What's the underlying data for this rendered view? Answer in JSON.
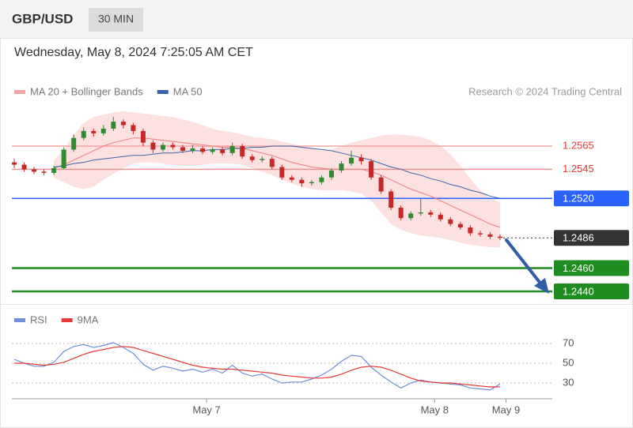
{
  "header": {
    "symbol": "GBP/USD",
    "timeframe": "30 MIN",
    "timestamp": "Wednesday, May 8, 2024 7:25:05 AM CET",
    "source": "Research © 2024 Trading Central"
  },
  "chart_data": [
    {
      "type": "candlestick",
      "candles": [
        [
          1.2551,
          1.2554,
          1.2546,
          1.2549
        ],
        [
          1.2549,
          1.2551,
          1.2543,
          1.2545
        ],
        [
          1.2545,
          1.2547,
          1.2541,
          1.2543
        ],
        [
          1.2543,
          1.2545,
          1.254,
          1.2542
        ],
        [
          1.2542,
          1.2548,
          1.254,
          1.2546
        ],
        [
          1.2546,
          1.2564,
          1.2545,
          1.2562
        ],
        [
          1.2562,
          1.2575,
          1.256,
          1.2572
        ],
        [
          1.2572,
          1.2581,
          1.257,
          1.2578
        ],
        [
          1.2578,
          1.258,
          1.2573,
          1.2576
        ],
        [
          1.2576,
          1.2583,
          1.2574,
          1.258
        ],
        [
          1.258,
          1.259,
          1.2578,
          1.2586
        ],
        [
          1.2586,
          1.2588,
          1.258,
          1.2583
        ],
        [
          1.2583,
          1.2585,
          1.2575,
          1.2578
        ],
        [
          1.2578,
          1.258,
          1.2565,
          1.2568
        ],
        [
          1.2568,
          1.257,
          1.2559,
          1.2562
        ],
        [
          1.2562,
          1.2568,
          1.256,
          1.2566
        ],
        [
          1.2566,
          1.2568,
          1.2562,
          1.2564
        ],
        [
          1.2564,
          1.2566,
          1.2559,
          1.2561
        ],
        [
          1.2561,
          1.2566,
          1.2559,
          1.2563
        ],
        [
          1.2563,
          1.2565,
          1.2558,
          1.256
        ],
        [
          1.256,
          1.2564,
          1.2558,
          1.2562
        ],
        [
          1.2562,
          1.2564,
          1.2557,
          1.2559
        ],
        [
          1.2559,
          1.2568,
          1.2557,
          1.2565
        ],
        [
          1.2565,
          1.2567,
          1.2554,
          1.2556
        ],
        [
          1.2556,
          1.2558,
          1.2551,
          1.2553
        ],
        [
          1.2553,
          1.2556,
          1.2551,
          1.2554
        ],
        [
          1.2554,
          1.2556,
          1.2545,
          1.2547
        ],
        [
          1.2547,
          1.2549,
          1.2536,
          1.2538
        ],
        [
          1.2538,
          1.254,
          1.2534,
          1.2536
        ],
        [
          1.2536,
          1.2538,
          1.253,
          1.2533
        ],
        [
          1.2533,
          1.2536,
          1.2531,
          1.2534
        ],
        [
          1.2534,
          1.254,
          1.2532,
          1.2538
        ],
        [
          1.2538,
          1.2546,
          1.2536,
          1.2544
        ],
        [
          1.2544,
          1.2552,
          1.2542,
          1.255
        ],
        [
          1.255,
          1.2561,
          1.2548,
          1.2555
        ],
        [
          1.2555,
          1.2558,
          1.2549,
          1.2552
        ],
        [
          1.2552,
          1.2554,
          1.2536,
          1.2538
        ],
        [
          1.2538,
          1.254,
          1.2524,
          1.2526
        ],
        [
          1.2526,
          1.2528,
          1.251,
          1.2512
        ],
        [
          1.2512,
          1.2514,
          1.2501,
          1.2503
        ],
        [
          1.2503,
          1.2509,
          1.2501,
          1.2507
        ],
        [
          1.2507,
          1.252,
          1.2505,
          1.2508
        ],
        [
          1.2508,
          1.251,
          1.2504,
          1.2506
        ],
        [
          1.2506,
          1.2508,
          1.25,
          1.2502
        ],
        [
          1.2502,
          1.2504,
          1.2496,
          1.2498
        ],
        [
          1.2498,
          1.25,
          1.2493,
          1.2495
        ],
        [
          1.2495,
          1.2497,
          1.2488,
          1.249
        ],
        [
          1.249,
          1.2492,
          1.2487,
          1.2489
        ],
        [
          1.2489,
          1.2491,
          1.2485,
          1.2487
        ],
        [
          1.2487,
          1.2489,
          1.2484,
          1.2486
        ]
      ],
      "up_color": "#2e8b2e",
      "down_color": "#c62828",
      "series": [
        {
          "name": "MA 20 + Bollinger Bands",
          "color": "#f4a3a3",
          "band_color": "#fde0e0",
          "values": [
            null,
            null,
            null,
            null,
            1.2546,
            1.2549,
            1.2553,
            1.2557,
            1.2561,
            1.2565,
            1.2568,
            1.257,
            1.2572,
            1.2572,
            1.2571,
            1.257,
            1.2569,
            1.2568,
            1.2567,
            1.2566,
            1.2565,
            1.2564,
            1.2564,
            1.2563,
            1.2561,
            1.2559,
            1.2557,
            1.2554,
            1.2551,
            1.2549,
            1.2547,
            1.2546,
            1.2545,
            1.2545,
            1.2545,
            1.2545,
            1.2543,
            1.254,
            1.2536,
            1.2532,
            1.2528,
            1.2525,
            1.2522,
            1.2518,
            1.2514,
            1.251,
            1.2506,
            1.2502,
            1.2498,
            1.2495
          ],
          "upper": [
            null,
            null,
            null,
            null,
            1.2553,
            1.2562,
            1.2575,
            1.2585,
            1.259,
            1.2592,
            1.2594,
            1.2595,
            1.2594,
            1.2593,
            1.2592,
            1.2591,
            1.259,
            1.2588,
            1.2586,
            1.2583,
            1.258,
            1.2578,
            1.2577,
            1.2575,
            1.2573,
            1.2572,
            1.2571,
            1.2569,
            1.2567,
            1.2565,
            1.2563,
            1.2561,
            1.2562,
            1.2565,
            1.2568,
            1.257,
            1.2572,
            1.2574,
            1.2575,
            1.2575,
            1.2574,
            1.2573,
            1.257,
            1.2565,
            1.2558,
            1.2548,
            1.2537,
            1.2527,
            1.252,
            1.2516
          ],
          "lower": [
            null,
            null,
            null,
            null,
            1.2538,
            1.2534,
            1.253,
            1.2528,
            1.253,
            1.2536,
            1.2541,
            1.2546,
            1.255,
            1.2551,
            1.2551,
            1.255,
            1.2549,
            1.2548,
            1.2548,
            1.2549,
            1.255,
            1.255,
            1.255,
            1.2549,
            1.2546,
            1.2543,
            1.254,
            1.2536,
            1.2533,
            1.253,
            1.2528,
            1.2527,
            1.2527,
            1.2527,
            1.2526,
            1.2524,
            1.2518,
            1.2508,
            1.2498,
            1.2493,
            1.249,
            1.2488,
            1.2487,
            1.2486,
            1.2484,
            1.2482,
            1.248,
            1.2479,
            1.2478,
            1.2478
          ]
        },
        {
          "name": "MA 50",
          "color": "#3a63a8",
          "values": [
            null,
            null,
            null,
            null,
            1.2547,
            1.2548,
            1.255,
            1.2551,
            1.2553,
            1.2554,
            1.2555,
            1.2556,
            1.2557,
            1.2557,
            1.2558,
            1.2559,
            1.2559,
            1.256,
            1.2561,
            1.2561,
            1.2562,
            1.2562,
            1.2563,
            1.2563,
            1.2564,
            1.2564,
            1.2565,
            1.2565,
            1.2565,
            1.2564,
            1.2563,
            1.2562,
            1.2561,
            1.2559,
            1.2557,
            1.2555,
            1.2553,
            1.255,
            1.2547,
            1.2545,
            1.2542,
            1.254,
            1.2537,
            1.2535,
            1.2532,
            1.253,
            1.2527,
            1.2525,
            1.2522,
            1.252
          ]
        }
      ],
      "levels": [
        {
          "value": 1.2565,
          "label": "1.2565",
          "color": "#f4a3a3",
          "label_color": "#e53935",
          "style": "text"
        },
        {
          "value": 1.2545,
          "label": "1.2545",
          "color": "#f08c8c",
          "label_color": "#e53935",
          "style": "text"
        },
        {
          "value": 1.252,
          "label": "1.2520",
          "color": "#2962ff",
          "label_color": "#2962ff",
          "style": "badge"
        },
        {
          "value": 1.2486,
          "label": "1.2486",
          "color": "#333333",
          "label_color": "#333333",
          "style": "current"
        },
        {
          "value": 1.246,
          "label": "1.2460",
          "color": "#1e8c1e",
          "label_color": "#1e8c1e",
          "style": "badge"
        },
        {
          "value": 1.244,
          "label": "1.2440",
          "color": "#1e8c1e",
          "label_color": "#1e8c1e",
          "style": "badge"
        }
      ],
      "xlim": [
        -0.24,
        54.27
      ],
      "ylim": [
        1.243,
        1.26
      ]
    },
    {
      "type": "line",
      "series": [
        {
          "name": "RSI",
          "color": "#6f8fdc",
          "values": [
            54,
            50,
            47,
            47,
            51,
            62,
            67,
            69,
            66,
            68,
            71,
            66,
            60,
            49,
            43,
            47,
            45,
            42,
            44,
            41,
            44,
            40,
            48,
            40,
            37,
            39,
            34,
            30,
            31,
            31,
            34,
            38,
            44,
            52,
            58,
            57,
            46,
            38,
            31,
            25,
            30,
            33,
            31,
            30,
            29,
            28,
            25,
            24,
            23,
            29
          ]
        },
        {
          "name": "9MA",
          "color": "#e53935",
          "values": [
            50,
            50,
            49,
            48,
            49,
            51,
            55,
            59,
            62,
            64,
            66,
            67,
            66,
            63,
            60,
            57,
            54,
            51,
            48,
            46,
            45,
            44,
            44,
            43,
            42,
            41,
            40,
            38,
            37,
            36,
            35,
            35,
            36,
            39,
            43,
            46,
            47,
            46,
            43,
            39,
            35,
            32,
            31,
            30,
            30,
            29,
            28,
            27,
            26,
            26
          ]
        }
      ],
      "xlim": [
        -0.24,
        54.27
      ],
      "xticks": [
        {
          "value": 19.4,
          "label": "May 7"
        },
        {
          "value": 42.4,
          "label": "May 8"
        },
        {
          "value": 49.6,
          "label": "May 9"
        }
      ],
      "ylim": [
        14,
        102
      ],
      "yticks": [
        30,
        50,
        70
      ],
      "grid": true
    }
  ]
}
